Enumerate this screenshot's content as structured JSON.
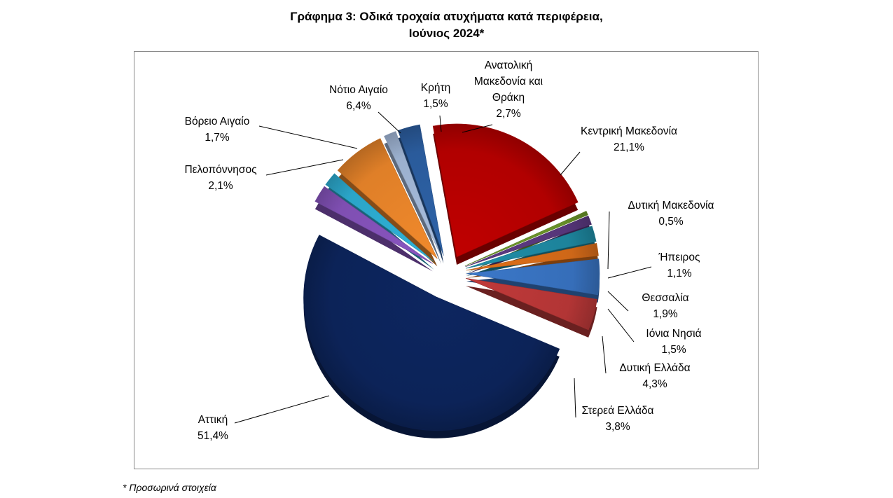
{
  "chart_data": {
    "type": "pie",
    "title_line1": "Γράφημα 3: Οδικά τροχαία ατυχήματα κατά περιφέρεια,",
    "title_line2": "Ιούνιος 2024*",
    "footnote": "* Προσωρινά στοιχεία",
    "slices": [
      {
        "label": "Ανατολική Μακεδονία και Θράκη",
        "label_lines": [
          "Ανατολική",
          "Μακεδονία και",
          "Θράκη"
        ],
        "value": 2.7,
        "value_label": "2,7%",
        "color": "#2e63a8"
      },
      {
        "label": "Κεντρική Μακεδονία",
        "label_lines": [
          "Κεντρική Μακεδονία"
        ],
        "value": 21.1,
        "value_label": "21,1%",
        "color": "#c00000"
      },
      {
        "label": "Δυτική Μακεδονία",
        "label_lines": [
          "Δυτική Μακεδονία"
        ],
        "value": 0.5,
        "value_label": "0,5%",
        "color": "#6f9a2a"
      },
      {
        "label": "Ήπειρος",
        "label_lines": [
          "Ήπειρος"
        ],
        "value": 1.1,
        "value_label": "1,1%",
        "color": "#5d3a84"
      },
      {
        "label": "Θεσσαλία",
        "label_lines": [
          "Θεσσαλία"
        ],
        "value": 1.9,
        "value_label": "1,9%",
        "color": "#1f8ea8"
      },
      {
        "label": "Ιόνια Νησιά",
        "label_lines": [
          "Ιόνια Νησιά"
        ],
        "value": 1.5,
        "value_label": "1,5%",
        "color": "#e0701a"
      },
      {
        "label": "Δυτική Ελλάδα",
        "label_lines": [
          "Δυτική Ελλάδα"
        ],
        "value": 4.3,
        "value_label": "4,3%",
        "color": "#3b78c9"
      },
      {
        "label": "Στερεά Ελλάδα",
        "label_lines": [
          "Στερεά Ελλάδα"
        ],
        "value": 3.8,
        "value_label": "3,8%",
        "color": "#c13a3a"
      },
      {
        "label": "Αττική",
        "label_lines": [
          "Αττική"
        ],
        "value": 51.4,
        "value_label": "51,4%",
        "color": "#0d2660"
      },
      {
        "label": "Πελοπόννησος",
        "label_lines": [
          "Πελοπόννησος"
        ],
        "value": 2.1,
        "value_label": "2,1%",
        "color": "#8a56c2"
      },
      {
        "label": "Βόρειο Αιγαίο",
        "label_lines": [
          "Βόρειο Αιγαίο"
        ],
        "value": 1.7,
        "value_label": "1,7%",
        "color": "#2fb3d9"
      },
      {
        "label": "Νότιο Αιγαίο",
        "label_lines": [
          "Νότιο Αιγαίο"
        ],
        "value": 6.4,
        "value_label": "6,4%",
        "color": "#f28a2c"
      },
      {
        "label": "Κρήτη",
        "label_lines": [
          "Κρήτη"
        ],
        "value": 1.5,
        "value_label": "1,5%",
        "color": "#a9bfe0"
      }
    ]
  }
}
